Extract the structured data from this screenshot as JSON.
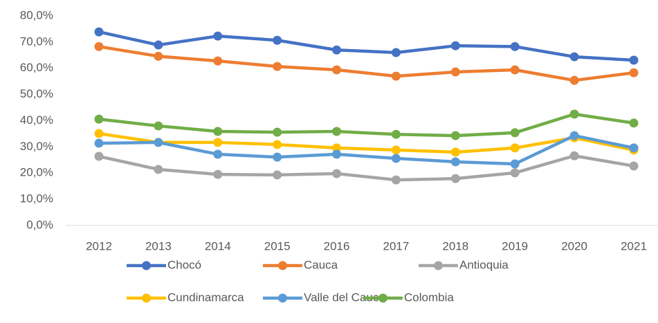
{
  "chart_data": {
    "type": "line",
    "categories": [
      "2012",
      "2013",
      "2014",
      "2015",
      "2016",
      "2017",
      "2018",
      "2019",
      "2020",
      "2021"
    ],
    "series": [
      {
        "name": "Chocó",
        "color": "#4472c4",
        "values": [
          73.9,
          68.9,
          72.3,
          70.7,
          67.0,
          66.0,
          68.6,
          68.3,
          64.4,
          63.1
        ]
      },
      {
        "name": "Cauca",
        "color": "#ed7d31",
        "values": [
          68.3,
          64.6,
          62.8,
          60.7,
          59.4,
          57.0,
          58.6,
          59.4,
          55.4,
          58.3
        ]
      },
      {
        "name": "Antioquia",
        "color": "#a5a5a5",
        "values": [
          26.4,
          21.4,
          19.5,
          19.3,
          19.8,
          17.4,
          17.9,
          20.1,
          26.6,
          22.7
        ]
      },
      {
        "name": "Cundinamarca",
        "color": "#ffc000",
        "values": [
          35.1,
          31.7,
          31.7,
          30.9,
          29.6,
          28.8,
          28.0,
          29.6,
          33.5,
          28.8
        ]
      },
      {
        "name": "Valle del Cauca",
        "color": "#5b9bd5",
        "values": [
          31.4,
          31.7,
          27.2,
          26.1,
          27.2,
          25.6,
          24.3,
          23.5,
          34.3,
          29.6
        ]
      },
      {
        "name": "Colombia",
        "color": "#70ad47",
        "values": [
          40.6,
          38.0,
          35.9,
          35.6,
          35.9,
          34.8,
          34.3,
          35.4,
          42.5,
          39.1
        ]
      }
    ],
    "ylim": [
      0,
      80
    ],
    "yticks": [
      {
        "value": 0,
        "label": "0,0%"
      },
      {
        "value": 10,
        "label": "10,0%"
      },
      {
        "value": 20,
        "label": "20,0%"
      },
      {
        "value": 30,
        "label": "30,0%"
      },
      {
        "value": 40,
        "label": "40,0%"
      },
      {
        "value": 50,
        "label": "50,0%"
      },
      {
        "value": 60,
        "label": "60,0%"
      },
      {
        "value": 70,
        "label": "70,0%"
      },
      {
        "value": 80,
        "label": "80,0%"
      }
    ],
    "grid": false,
    "legend": "bottom"
  }
}
